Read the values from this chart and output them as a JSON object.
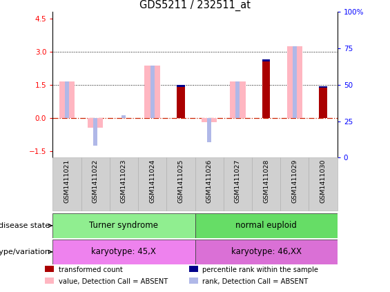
{
  "title": "GDS5211 / 232511_at",
  "samples": [
    "GSM1411021",
    "GSM1411022",
    "GSM1411023",
    "GSM1411024",
    "GSM1411025",
    "GSM1411026",
    "GSM1411027",
    "GSM1411028",
    "GSM1411029",
    "GSM1411030"
  ],
  "value_absent": [
    1.65,
    -0.45,
    null,
    2.35,
    null,
    -0.2,
    1.65,
    null,
    3.25,
    null
  ],
  "rank_absent_pos": [
    1.65,
    null,
    0.13,
    2.35,
    null,
    null,
    1.65,
    null,
    3.25,
    null
  ],
  "rank_absent_neg": [
    null,
    -1.25,
    null,
    null,
    null,
    -1.1,
    null,
    null,
    null,
    null
  ],
  "transformed_count": [
    null,
    null,
    null,
    null,
    1.4,
    null,
    null,
    2.55,
    null,
    1.35
  ],
  "percentile_rank": [
    null,
    null,
    null,
    null,
    1.5,
    null,
    null,
    2.65,
    null,
    1.42
  ],
  "disease_state_groups": [
    {
      "label": "Turner syndrome",
      "start": 0,
      "end": 5,
      "color": "#90ee90"
    },
    {
      "label": "normal euploid",
      "start": 5,
      "end": 10,
      "color": "#66dd66"
    }
  ],
  "genotype_groups": [
    {
      "label": "karyotype: 45,X",
      "start": 0,
      "end": 5,
      "color": "#ee82ee"
    },
    {
      "label": "karyotype: 46,XX",
      "start": 5,
      "end": 10,
      "color": "#da70d6"
    }
  ],
  "ylim": [
    -1.8,
    4.8
  ],
  "yticks_left": [
    -1.5,
    0.0,
    1.5,
    3.0,
    4.5
  ],
  "yticks_right_labels": [
    "0",
    "25",
    "50",
    "75",
    "100%"
  ],
  "yticks_right_vals": [
    0,
    25,
    50,
    75,
    100
  ],
  "hlines_dotted": [
    1.5,
    3.0
  ],
  "color_value_absent": "#ffb6c1",
  "color_rank_absent": "#b0b8e8",
  "color_transformed": "#aa0000",
  "color_percentile": "#00008b",
  "color_zero_line": "#cc2200",
  "legend_items": [
    {
      "label": "transformed count",
      "color": "#aa0000"
    },
    {
      "label": "percentile rank within the sample",
      "color": "#00008b"
    },
    {
      "label": "value, Detection Call = ABSENT",
      "color": "#ffb6c1"
    },
    {
      "label": "rank, Detection Call = ABSENT",
      "color": "#b0b8e8"
    }
  ]
}
